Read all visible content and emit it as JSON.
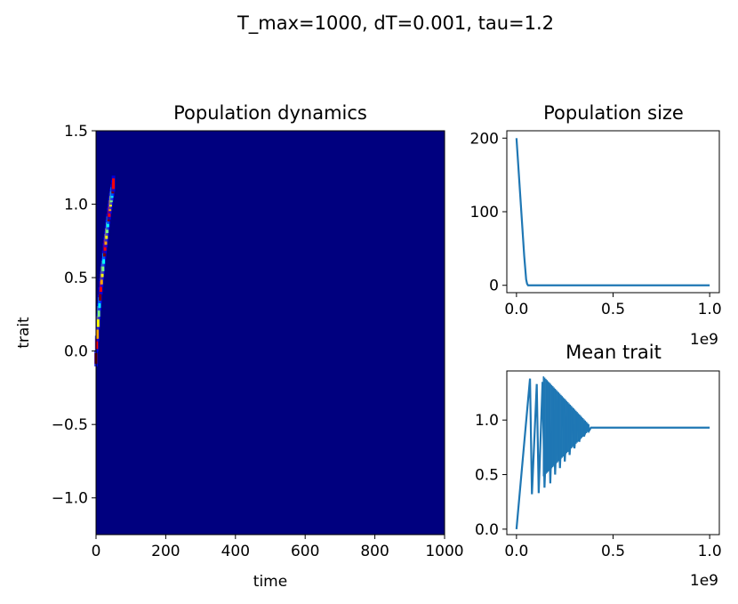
{
  "figure": {
    "suptitle": "T_max=1000, dT=0.001, tau=1.2"
  },
  "chart_data": [
    {
      "type": "heatmap",
      "title": "Population dynamics",
      "xlabel": "time",
      "ylabel": "trait",
      "xlim": [
        0,
        1000
      ],
      "ylim": [
        -1.25,
        1.5
      ],
      "xticks": [
        "0",
        "200",
        "400",
        "600",
        "800",
        "1000"
      ],
      "yticks": [
        "−1.0",
        "−0.5",
        "0.0",
        "0.5",
        "1.0",
        "1.5"
      ],
      "colormap": "jet",
      "background_color": "#00007f",
      "ridge": {
        "x": [
          0,
          2,
          4,
          6,
          8,
          10,
          12,
          14,
          16,
          18,
          20,
          22,
          24,
          26,
          28,
          30,
          32,
          34,
          36,
          38,
          40,
          42,
          44,
          46,
          48,
          50
        ],
        "y": [
          -0.05,
          0.05,
          0.12,
          0.2,
          0.27,
          0.33,
          0.38,
          0.44,
          0.49,
          0.54,
          0.58,
          0.63,
          0.68,
          0.72,
          0.76,
          0.8,
          0.84,
          0.88,
          0.92,
          0.95,
          0.99,
          1.02,
          1.05,
          1.08,
          1.11,
          1.14
        ]
      }
    },
    {
      "type": "line",
      "title": "Population size",
      "xlim": [
        -0.05,
        1.05
      ],
      "ylim": [
        -10,
        210
      ],
      "xticks": [
        "0.0",
        "0.5",
        "1.0"
      ],
      "yticks": [
        "0",
        "100",
        "200"
      ],
      "x_multiplier": "1e9",
      "color": "#1f77b4",
      "series": [
        {
          "x": [
            0,
            0.01,
            0.02,
            0.03,
            0.04,
            0.05,
            0.055,
            0.06,
            0.1,
            0.5,
            1.0
          ],
          "y": [
            200,
            160,
            120,
            80,
            40,
            8,
            2,
            0,
            0,
            0,
            0
          ]
        }
      ]
    },
    {
      "type": "line",
      "title": "Mean trait",
      "xlim": [
        -0.05,
        1.05
      ],
      "ylim": [
        -0.05,
        1.45
      ],
      "xticks": [
        "0.0",
        "0.5",
        "1.0"
      ],
      "yticks": [
        "0.0",
        "0.5",
        "1.0"
      ],
      "x_multiplier": "1e9",
      "color": "#1f77b4",
      "oscillation": {
        "start": 0.0,
        "decay_end": 0.38,
        "equilibrium": 0.93,
        "peaks": [
          [
            0.0,
            0.0
          ],
          [
            0.07,
            1.38
          ],
          [
            0.08,
            0.32
          ],
          [
            0.105,
            1.33
          ],
          [
            0.115,
            0.33
          ],
          [
            0.135,
            1.35
          ],
          [
            0.145,
            0.38
          ],
          [
            0.165,
            1.33
          ],
          [
            0.175,
            0.42
          ],
          [
            0.19,
            1.29
          ],
          [
            0.2,
            0.5
          ],
          [
            0.215,
            1.23
          ],
          [
            0.225,
            0.56
          ],
          [
            0.24,
            1.19
          ],
          [
            0.25,
            0.62
          ],
          [
            0.265,
            1.14
          ],
          [
            0.275,
            0.68
          ],
          [
            0.29,
            1.09
          ],
          [
            0.3,
            0.74
          ],
          [
            0.315,
            1.05
          ],
          [
            0.325,
            0.8
          ],
          [
            0.34,
            1.01
          ],
          [
            0.35,
            0.85
          ],
          [
            0.365,
            0.97
          ],
          [
            0.375,
            0.9
          ],
          [
            0.385,
            0.93
          ],
          [
            1.0,
            0.93
          ]
        ]
      }
    }
  ]
}
